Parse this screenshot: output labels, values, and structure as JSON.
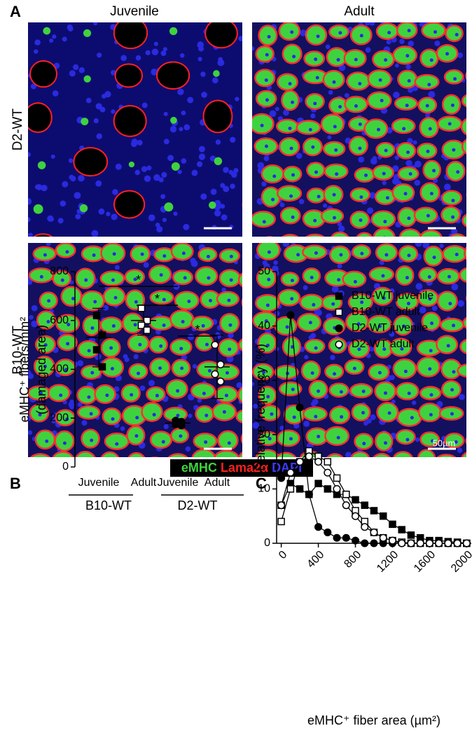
{
  "panel_a": {
    "letter": "A",
    "columns": [
      "Juvenile",
      "Adult"
    ],
    "rows": [
      "D2-WT",
      "B10-WT"
    ],
    "scale_bar": "50µm",
    "stain_legend": [
      {
        "name": "eMHC",
        "color": "#3fd23f"
      },
      {
        "name": "Lama2α",
        "color": "#ff2020"
      },
      {
        "name": "DAPI",
        "color": "#3a3aff"
      }
    ]
  },
  "chart_data": [
    {
      "type": "dotplot",
      "panel": "B",
      "ylabel": [
        "eMHC⁺ fibers/mm²",
        "(damaged area)"
      ],
      "categories": [
        "Juvenile",
        "Adult",
        "Juvenile",
        "Adult"
      ],
      "groups": [
        "B10-WT",
        "D2-WT"
      ],
      "markers": [
        "filled-square",
        "open-square",
        "filled-circle",
        "open-circle"
      ],
      "points": [
        [
          620,
          540,
          480,
          410
        ],
        [
          650,
          600,
          580,
          560
        ],
        [
          190,
          185,
          175,
          170
        ],
        [
          500,
          420,
          380,
          350
        ]
      ],
      "means": [
        530,
        600,
        180,
        410
      ],
      "sds": [
        120,
        60,
        15,
        130
      ],
      "annotations": [
        "*",
        "*",
        "*"
      ],
      "ylim": [
        0,
        800
      ],
      "yticks": [
        0,
        200,
        400,
        600,
        800
      ]
    },
    {
      "type": "line",
      "panel": "C",
      "xlabel": "eMHC⁺ fiber area (µm²)",
      "ylabel": "Relative frequency (%)",
      "x": [
        0,
        100,
        200,
        300,
        400,
        500,
        600,
        700,
        800,
        900,
        1000,
        1100,
        1200,
        1300,
        1400,
        1500,
        1600,
        1700,
        1800,
        1900,
        2000
      ],
      "series": [
        {
          "name": "B10-WT juvenile",
          "marker": "filled-square",
          "values": [
            7,
            11,
            10,
            9,
            11,
            10,
            9,
            9,
            8,
            7,
            6,
            5,
            3.5,
            2.5,
            1.5,
            1,
            0.5,
            0.5,
            0.3,
            0.2,
            0
          ]
        },
        {
          "name": "B10-WT adult",
          "marker": "open-square",
          "values": [
            4,
            10,
            15,
            17,
            16,
            15,
            12,
            9,
            6,
            4,
            2,
            1,
            0.5,
            0.2,
            0,
            0,
            0,
            0,
            0,
            0,
            0
          ]
        },
        {
          "name": "D2-WT juvenile",
          "marker": "filled-circle",
          "values": [
            12,
            42,
            25,
            9,
            3,
            2,
            1,
            1,
            0.5,
            0,
            0,
            0,
            0,
            0,
            0,
            0,
            0,
            0,
            0,
            0,
            0
          ]
        },
        {
          "name": "D2-WT adult",
          "marker": "open-circle",
          "values": [
            7,
            13,
            15,
            16,
            15,
            13,
            10,
            7,
            5,
            3,
            2,
            1,
            0.5,
            0,
            0,
            0,
            0,
            0,
            0,
            0,
            0
          ]
        }
      ],
      "xlim": [
        -50,
        2050
      ],
      "ylim": [
        0,
        50
      ],
      "xticks": [
        0,
        400,
        800,
        1200,
        1600,
        2000
      ],
      "yticks": [
        0,
        10,
        20,
        30,
        40,
        50
      ]
    }
  ]
}
